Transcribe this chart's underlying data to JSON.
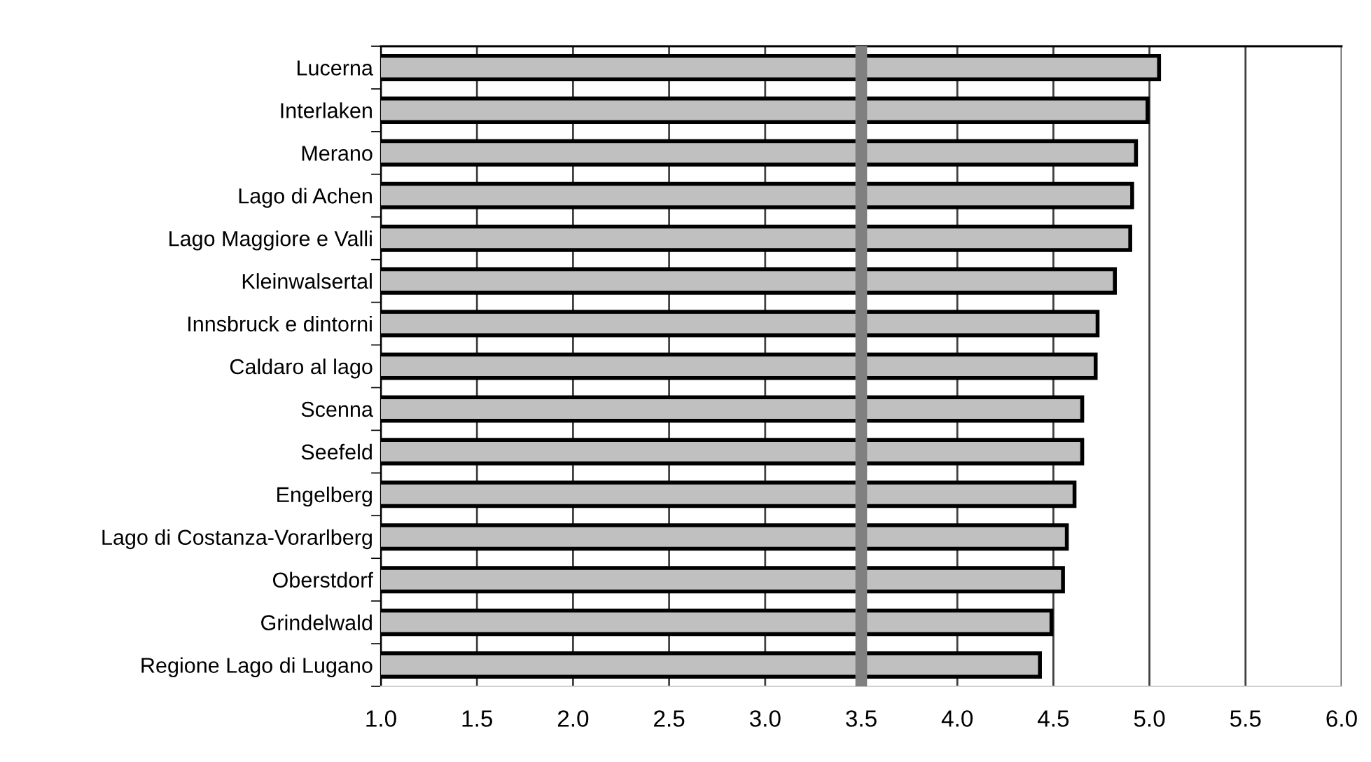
{
  "chart_data": {
    "type": "bar",
    "orientation": "horizontal",
    "categories": [
      "Lucerna",
      "Interlaken",
      "Merano",
      "Lago di Achen",
      "Lago Maggiore e Valli",
      "Kleinwalsertal",
      "Innsbruck e dintorni",
      "Caldaro al lago",
      "Scenna",
      "Seefeld",
      "Engelberg",
      "Lago di Costanza-Vorarlberg",
      "Oberstdorf",
      "Grindelwald",
      "Regione Lago di Lugano"
    ],
    "values": [
      5.05,
      4.99,
      4.93,
      4.91,
      4.9,
      4.82,
      4.73,
      4.72,
      4.65,
      4.65,
      4.61,
      4.57,
      4.55,
      4.49,
      4.43
    ],
    "color": "#c0c0c0",
    "xlim": [
      1.0,
      6.0
    ],
    "xticks": [
      {
        "value": 1.0,
        "label": "1.0"
      },
      {
        "value": 1.5,
        "label": "1.5"
      },
      {
        "value": 2.0,
        "label": "2.0"
      },
      {
        "value": 2.5,
        "label": "2.5"
      },
      {
        "value": 3.0,
        "label": "3.0"
      },
      {
        "value": 3.5,
        "label": "3.5"
      },
      {
        "value": 4.0,
        "label": "4.0"
      },
      {
        "value": 4.5,
        "label": "4.5"
      },
      {
        "value": 5.0,
        "label": "5.0"
      },
      {
        "value": 5.5,
        "label": "5.5"
      },
      {
        "value": 6.0,
        "label": "6.0"
      }
    ],
    "grid": "x",
    "ref_lines": [
      {
        "axis": "x",
        "value": 3.5,
        "color": "#808080"
      }
    ]
  }
}
